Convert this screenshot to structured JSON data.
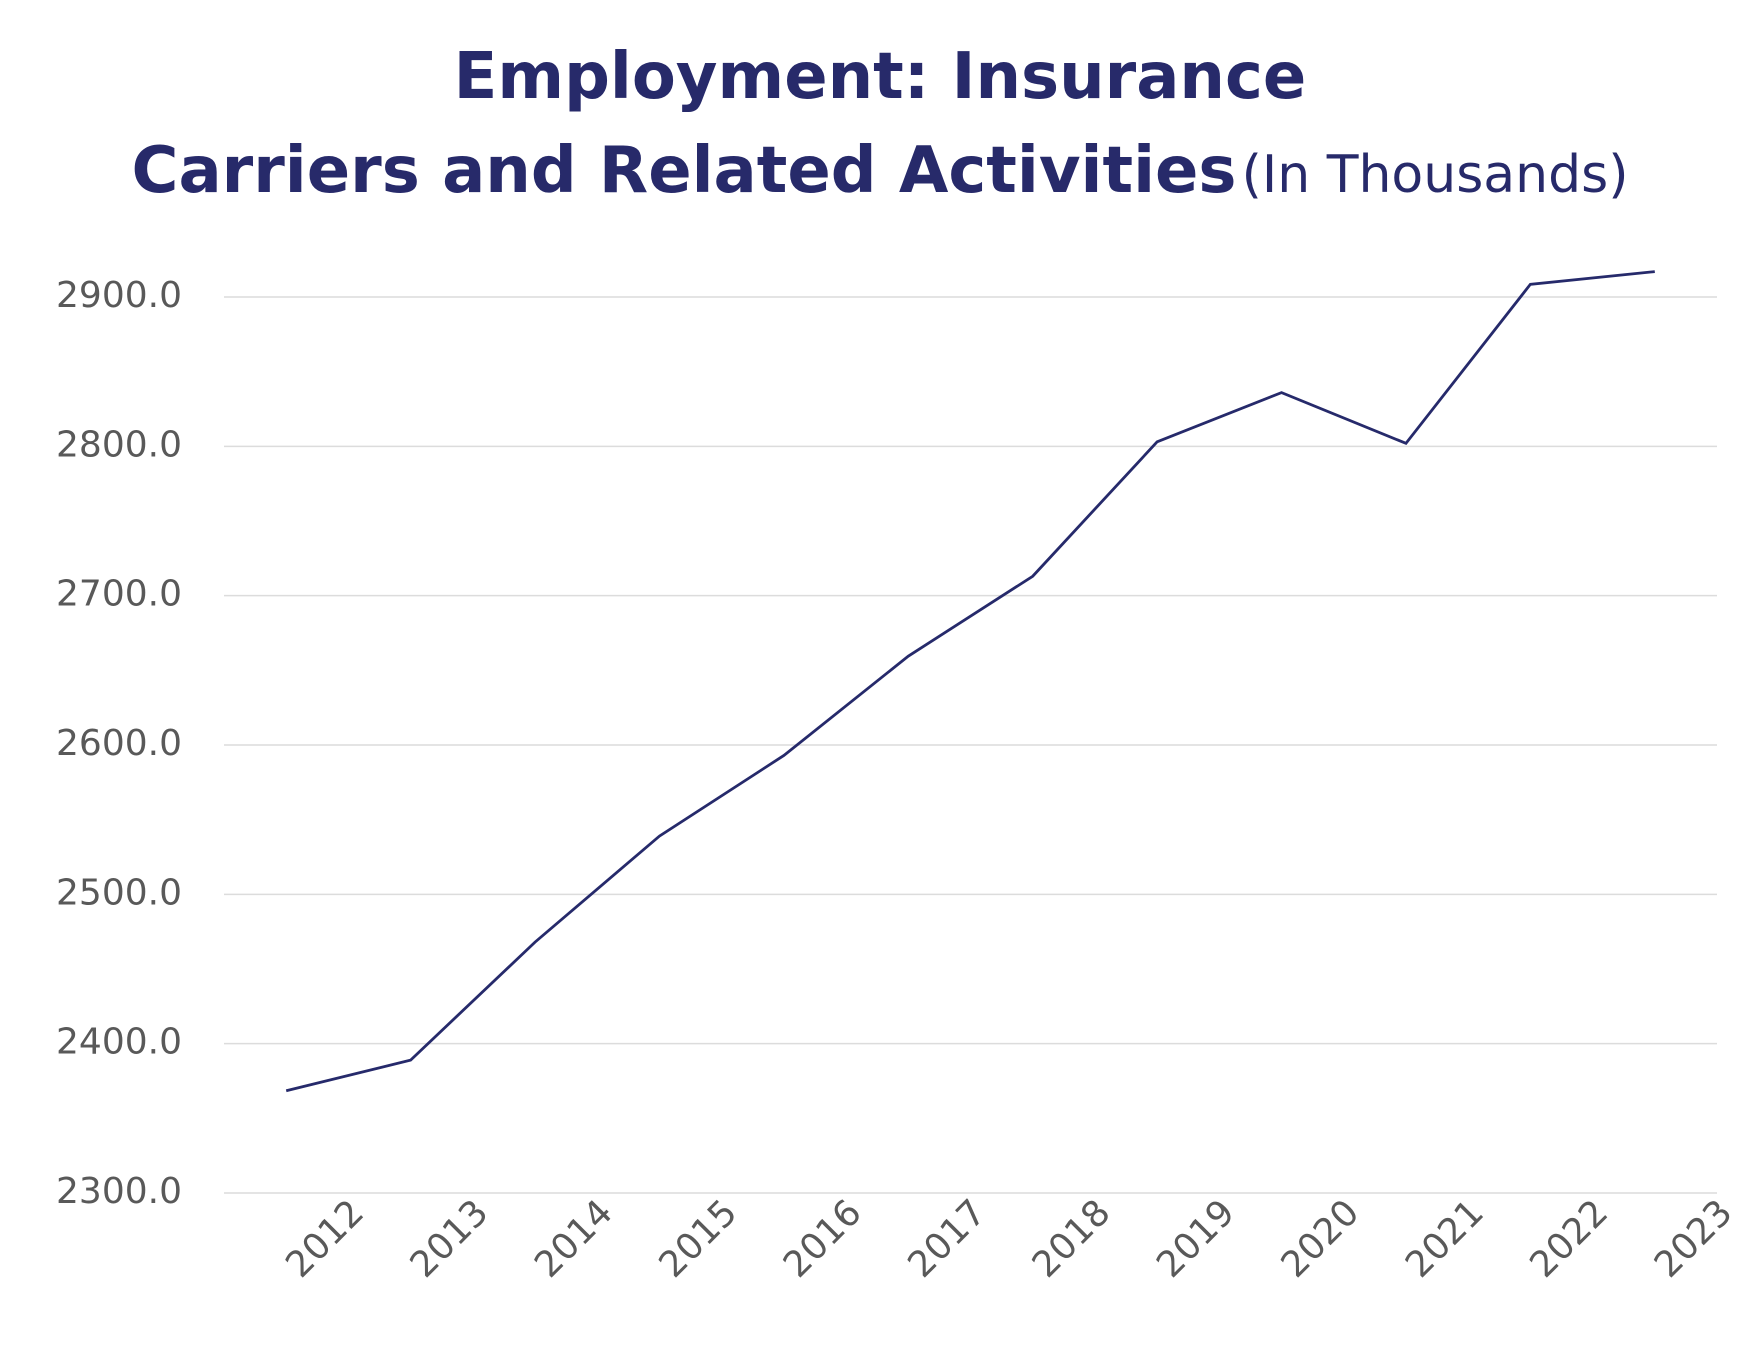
{
  "chart_data": {
    "type": "line",
    "title": "Employment: Insurance\nCarriers and Related Activities",
    "subtitle": "(In Thousands)",
    "categories": [
      "2012",
      "2013",
      "2014",
      "2015",
      "2016",
      "2017",
      "2018",
      "2019",
      "2020",
      "2021",
      "2022",
      "2023"
    ],
    "values": [
      2368.5,
      2389,
      2468,
      2539,
      2593,
      2659.5,
      2713,
      2803,
      2836,
      2802,
      2908.5,
      2917
    ],
    "color": "#262a6b",
    "ylim": [
      2300,
      2900
    ],
    "yticks": [
      {
        "value": 2300,
        "label": "2300.0"
      },
      {
        "value": 2400,
        "label": "2400.0"
      },
      {
        "value": 2500,
        "label": "2500.0"
      },
      {
        "value": 2600,
        "label": "2600.0"
      },
      {
        "value": 2700,
        "label": "2700.0"
      },
      {
        "value": 2800,
        "label": "2800.0"
      },
      {
        "value": 2900,
        "label": "2900.0"
      }
    ],
    "grid": true
  }
}
